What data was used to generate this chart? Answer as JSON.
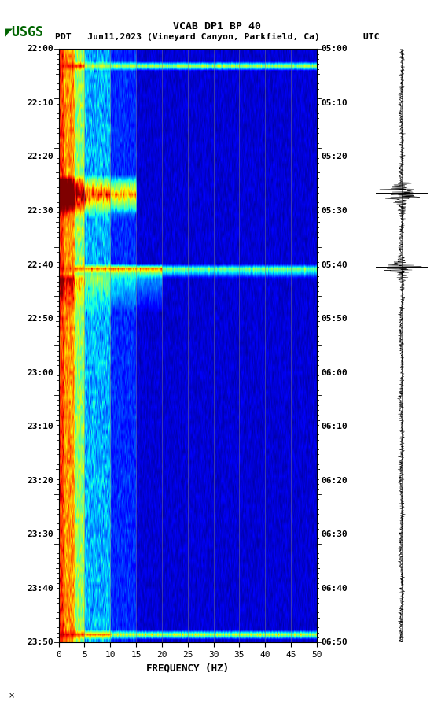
{
  "title_line1": "VCAB DP1 BP 40",
  "title_line2": "PDT   Jun11,2023 (Vineyard Canyon, Parkfield, Ca)        UTC",
  "xlabel": "FREQUENCY (HZ)",
  "freq_min": 0,
  "freq_max": 50,
  "freq_ticks": [
    0,
    5,
    10,
    15,
    20,
    25,
    30,
    35,
    40,
    45,
    50
  ],
  "time_start_label": "22:00",
  "time_end_label": "23:50",
  "utc_start_label": "05:00",
  "utc_end_label": "06:50",
  "left_time_labels": [
    "22:00",
    "22:10",
    "22:20",
    "22:30",
    "22:40",
    "22:50",
    "23:00",
    "23:10",
    "23:20",
    "23:30",
    "23:40",
    "23:50"
  ],
  "right_time_labels": [
    "05:00",
    "05:10",
    "05:20",
    "05:30",
    "05:40",
    "05:50",
    "06:00",
    "06:10",
    "06:20",
    "06:30",
    "06:40",
    "06:50"
  ],
  "n_time_steps": 120,
  "n_freq_bins": 500,
  "background_color": "#ffffff",
  "grid_line_color": "#808080",
  "grid_line_alpha": 0.55,
  "colormap": "jet",
  "vmin": 0.0,
  "vmax": 1.0,
  "random_seed": 42,
  "eq1_time": 29,
  "eq2_time": 44,
  "hband1_time": 3,
  "hband2_time": 44,
  "hband3_time": 118
}
